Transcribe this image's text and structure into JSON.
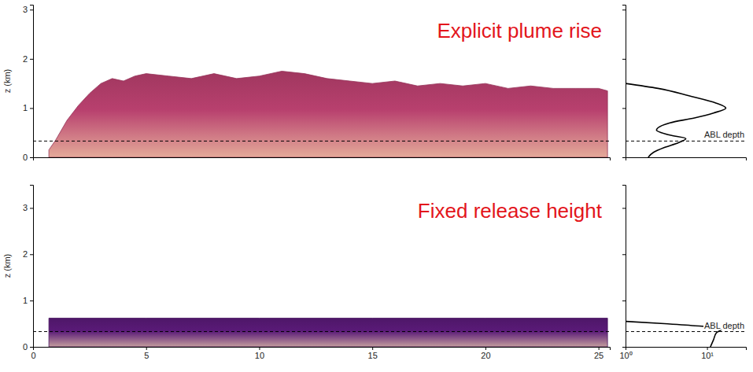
{
  "chart_data": [
    {
      "type": "area",
      "annotation": "Explicit plume rise",
      "y_label": "z (km)",
      "x": [
        0.7,
        1,
        1.5,
        2,
        2.5,
        3,
        3.5,
        4,
        4.5,
        5,
        6,
        7,
        8,
        9,
        10,
        11,
        12,
        13,
        14,
        15,
        16,
        17,
        18,
        19,
        20,
        21,
        22,
        23,
        24,
        25,
        25.4
      ],
      "values": [
        0.15,
        0.35,
        0.75,
        1.05,
        1.3,
        1.5,
        1.6,
        1.55,
        1.65,
        1.7,
        1.65,
        1.6,
        1.7,
        1.6,
        1.65,
        1.75,
        1.7,
        1.6,
        1.55,
        1.5,
        1.55,
        1.45,
        1.5,
        1.45,
        1.5,
        1.4,
        1.45,
        1.4,
        1.4,
        1.4,
        1.35
      ],
      "xlim": [
        0,
        25.5
      ],
      "ylim": [
        0,
        3.1
      ],
      "yticks": [
        0,
        1,
        2,
        3
      ],
      "tick_labels": "y",
      "abl_depth": 0.33,
      "color": "#b8406e"
    },
    {
      "type": "area",
      "annotation": "Fixed release height",
      "y_label": "z (km)",
      "x": [
        0.7,
        5,
        10,
        15,
        20,
        25.4
      ],
      "values": [
        0.62,
        0.62,
        0.62,
        0.62,
        0.62,
        0.62
      ],
      "xlim": [
        0,
        25.5
      ],
      "xticks": [
        0,
        5,
        10,
        15,
        20,
        25
      ],
      "ylim": [
        0,
        3.5
      ],
      "yticks": [
        0,
        1,
        2,
        3
      ],
      "abl_depth": 0.33,
      "color": "#5a1a78"
    },
    {
      "type": "line",
      "log": "x",
      "x": [
        1.9,
        2.2,
        3,
        4.5,
        5.5,
        3.5,
        2.4,
        3.5,
        7,
        12,
        17,
        13,
        6,
        2.5,
        1
      ],
      "y": [
        0,
        0.1,
        0.2,
        0.3,
        0.38,
        0.45,
        0.55,
        0.7,
        0.8,
        0.9,
        1.0,
        1.1,
        1.25,
        1.4,
        1.5
      ],
      "xlim": [
        1,
        30
      ],
      "ylim": [
        0,
        3.1
      ],
      "yticks": [
        0,
        1,
        2,
        3
      ],
      "tick_labels": false,
      "abl_depth": 0.33,
      "abl_label": "ABL depth",
      "color": "#000000"
    },
    {
      "type": "line",
      "log": "x",
      "x": [
        11,
        12,
        13,
        15,
        8,
        3,
        1
      ],
      "y": [
        0,
        0.15,
        0.3,
        0.38,
        0.45,
        0.5,
        0.55
      ],
      "xlim": [
        1,
        30
      ],
      "xticks": [
        {
          "value": 1,
          "label": "10⁰"
        },
        {
          "value": 10,
          "label": "10¹"
        }
      ],
      "ylim": [
        0,
        3.5
      ],
      "yticks": [
        0,
        1,
        2,
        3
      ],
      "tick_labels": "x",
      "abl_depth": 0.33,
      "abl_label": "ABL depth",
      "color": "#000000"
    }
  ]
}
